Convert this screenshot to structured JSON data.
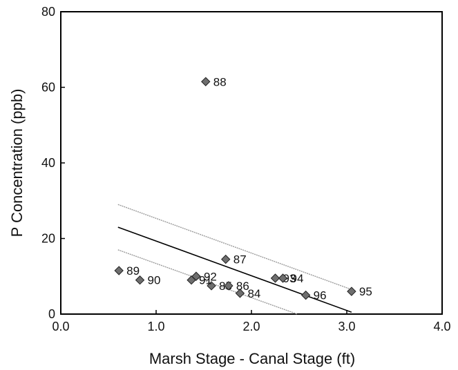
{
  "chart_data": {
    "type": "scatter",
    "title": "",
    "xlabel": "Marsh Stage - Canal Stage (ft)",
    "ylabel": "P Concentration (ppb)",
    "xlim": [
      0,
      4
    ],
    "ylim": [
      0,
      80
    ],
    "x_ticks": [
      "0.0",
      "1.0",
      "2.0",
      "3.0",
      "4.0"
    ],
    "y_ticks": [
      "0",
      "20",
      "40",
      "60",
      "80"
    ],
    "grid": false,
    "legend": "none",
    "points": [
      {
        "label": "84",
        "x": 1.88,
        "y": 5.5
      },
      {
        "label": "85",
        "x": 1.58,
        "y": 7.5
      },
      {
        "label": "86",
        "x": 1.76,
        "y": 7.5
      },
      {
        "label": "87",
        "x": 1.73,
        "y": 14.5
      },
      {
        "label": "88",
        "x": 1.52,
        "y": 61.5
      },
      {
        "label": "89",
        "x": 0.61,
        "y": 11.5
      },
      {
        "label": "90",
        "x": 0.83,
        "y": 9.0
      },
      {
        "label": "91",
        "x": 1.37,
        "y": 9.0
      },
      {
        "label": "92",
        "x": 1.42,
        "y": 10.0
      },
      {
        "label": "93",
        "x": 2.25,
        "y": 9.5
      },
      {
        "label": "94",
        "x": 2.33,
        "y": 9.5
      },
      {
        "label": "95",
        "x": 3.05,
        "y": 6.0
      },
      {
        "label": "96",
        "x": 2.57,
        "y": 5.0
      }
    ],
    "regression_line": {
      "x": [
        0.6,
        3.05
      ],
      "y": [
        23.0,
        0.5
      ]
    },
    "confidence_upper": {
      "x": [
        0.6,
        3.05
      ],
      "y": [
        29.0,
        6.5
      ]
    },
    "confidence_lower": {
      "x": [
        0.6,
        2.48
      ],
      "y": [
        17.0,
        0.0
      ]
    },
    "colors": {
      "marker": "#6e6e6e",
      "marker_edge": "#222222",
      "fit_line": "#000000",
      "confidence": "#9a9a9a"
    }
  }
}
